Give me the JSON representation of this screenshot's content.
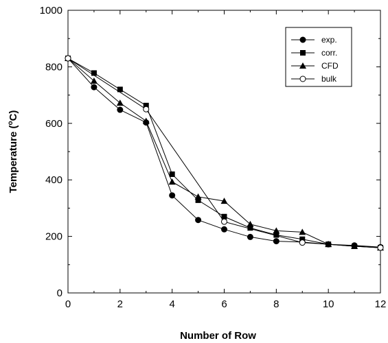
{
  "chart_data": {
    "type": "line",
    "title": "",
    "xlabel": "Number of Row",
    "ylabel_main": "Temperature (",
    "ylabel_super": "o",
    "ylabel_end": "C)",
    "xlim": [
      0,
      12
    ],
    "ylim": [
      0,
      1000
    ],
    "xticks": [
      0,
      2,
      4,
      6,
      8,
      10,
      12
    ],
    "yticks": [
      0,
      200,
      400,
      600,
      800,
      1000
    ],
    "grid": false,
    "legend_position": "top-right",
    "series": [
      {
        "name": "exp.",
        "marker": "filled-circle",
        "x": [
          0,
          1,
          2,
          3,
          4,
          5,
          6,
          7,
          8,
          9,
          10,
          11,
          12
        ],
        "y": [
          830,
          728,
          648,
          603,
          345,
          258,
          225,
          198,
          183,
          180,
          172,
          168,
          162
        ]
      },
      {
        "name": "corr.",
        "marker": "filled-square",
        "x": [
          0,
          1,
          2,
          3,
          4,
          5,
          6,
          7,
          8,
          9,
          10,
          11,
          12
        ],
        "y": [
          830,
          778,
          720,
          663,
          420,
          328,
          270,
          230,
          205,
          190,
          172,
          165,
          160
        ]
      },
      {
        "name": "CFD",
        "marker": "filled-triangle",
        "x": [
          0,
          1,
          2,
          3,
          4,
          5,
          6,
          7,
          8,
          9,
          10,
          11,
          12
        ],
        "y": [
          830,
          750,
          672,
          608,
          393,
          340,
          325,
          243,
          220,
          215,
          172,
          165,
          160
        ]
      },
      {
        "name": "bulk",
        "marker": "open-circle",
        "x": [
          0,
          3,
          6,
          9,
          12
        ],
        "y": [
          830,
          650,
          252,
          178,
          160
        ]
      }
    ]
  }
}
